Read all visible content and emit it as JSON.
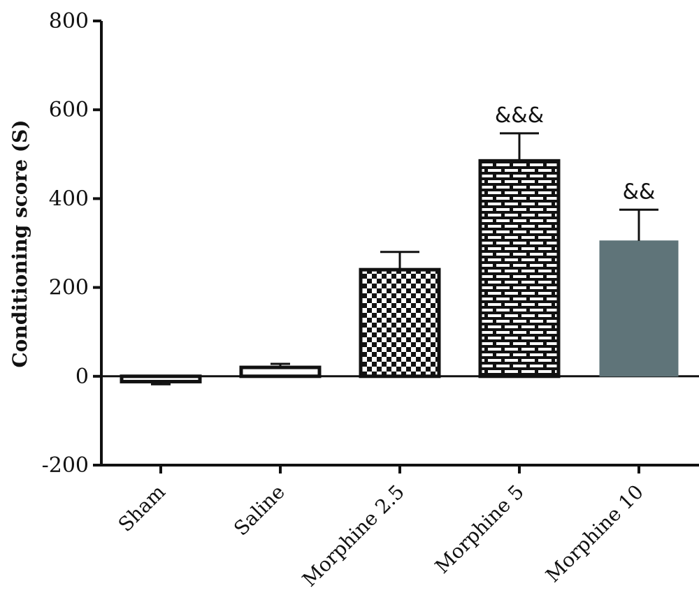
{
  "chart_data": {
    "type": "bar",
    "title": "",
    "xlabel": "",
    "ylabel": "Conditioning score (S)",
    "ylim": [
      -200,
      800
    ],
    "yticks": [
      -200,
      0,
      200,
      400,
      600,
      800
    ],
    "categories": [
      "Sham",
      "Saline",
      "Morphine 2.5",
      "Morphine 5",
      "Morphine 10"
    ],
    "values": [
      -12,
      20,
      240,
      485,
      305
    ],
    "errors": [
      6,
      8,
      40,
      62,
      70
    ],
    "annotations": [
      "",
      "",
      "",
      "&&&",
      "&&"
    ],
    "fills": [
      "outline",
      "outline",
      "checkerboard",
      "brick",
      "solid"
    ],
    "colors": {
      "solid": "#5f7479",
      "stroke": "#111111"
    },
    "grid": false
  }
}
